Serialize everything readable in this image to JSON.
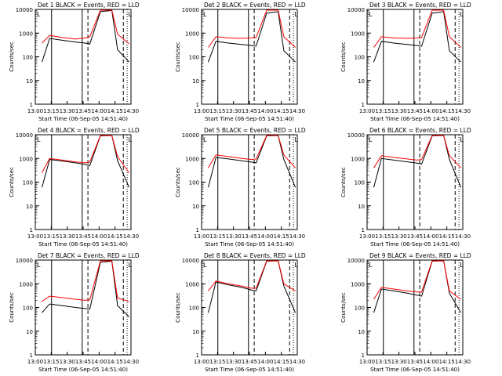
{
  "figure": {
    "ylabel": "Counts/sec",
    "xlabel": "Start Time (06-Sep-05 14:51:40)",
    "xticks": [
      "13:00",
      "13:15",
      "13:30",
      "13:45",
      "14:00",
      "14:15",
      "14:30"
    ],
    "yticks": [
      "1",
      "10",
      "100",
      "1000",
      "10000"
    ],
    "legend": "BLACK = Events, RED = LLD",
    "marker_labels": [
      "L",
      "L"
    ]
  },
  "chart_data": [
    {
      "type": "line",
      "title": "Det 1",
      "x_start": "13:00",
      "x_end": "14:30",
      "ylim": [
        1,
        10000
      ],
      "yscale": "log",
      "series": [
        {
          "name": "Events",
          "color": "#000000",
          "values_approx": [
            60,
            600,
            500,
            420,
            380,
            350,
            8000,
            9000,
            200,
            60
          ]
        },
        {
          "name": "LLD",
          "color": "#ff0000",
          "values_approx": [
            380,
            800,
            650,
            560,
            620,
            700,
            12000,
            12000,
            900,
            350
          ]
        }
      ]
    },
    {
      "type": "line",
      "title": "Det 2",
      "x_start": "13:00",
      "x_end": "14:30",
      "ylim": [
        1,
        10000
      ],
      "yscale": "log",
      "series": [
        {
          "name": "Events",
          "color": "#000000",
          "values_approx": [
            60,
            450,
            380,
            330,
            300,
            280,
            7000,
            8000,
            180,
            60
          ]
        },
        {
          "name": "LLD",
          "color": "#ff0000",
          "values_approx": [
            250,
            700,
            620,
            600,
            620,
            650,
            12000,
            12000,
            700,
            250
          ]
        }
      ]
    },
    {
      "type": "line",
      "title": "Det 3",
      "x_start": "13:00",
      "x_end": "14:30",
      "ylim": [
        1,
        10000
      ],
      "yscale": "log",
      "series": [
        {
          "name": "Events",
          "color": "#000000",
          "values_approx": [
            60,
            450,
            380,
            330,
            300,
            280,
            7000,
            8000,
            180,
            60
          ]
        },
        {
          "name": "LLD",
          "color": "#ff0000",
          "values_approx": [
            250,
            700,
            620,
            600,
            620,
            650,
            12000,
            12000,
            700,
            250
          ]
        }
      ]
    },
    {
      "type": "line",
      "title": "Det 4",
      "x_start": "13:00",
      "x_end": "14:30",
      "ylim": [
        1,
        10000
      ],
      "yscale": "log",
      "series": [
        {
          "name": "Events",
          "color": "#000000",
          "values_approx": [
            60,
            900,
            780,
            650,
            560,
            500,
            9000,
            10000,
            800,
            60
          ]
        },
        {
          "name": "LLD",
          "color": "#ff0000",
          "values_approx": [
            250,
            1000,
            850,
            720,
            650,
            700,
            12000,
            12000,
            1200,
            250
          ]
        }
      ]
    },
    {
      "type": "line",
      "title": "Det 5",
      "x_start": "13:00",
      "x_end": "14:30",
      "ylim": [
        1,
        10000
      ],
      "yscale": "log",
      "series": [
        {
          "name": "Events",
          "color": "#000000",
          "values_approx": [
            60,
            1100,
            950,
            800,
            700,
            650,
            9000,
            10000,
            900,
            60
          ]
        },
        {
          "name": "LLD",
          "color": "#ff0000",
          "values_approx": [
            400,
            1400,
            1200,
            1000,
            900,
            950,
            12000,
            12000,
            1400,
            400
          ]
        }
      ]
    },
    {
      "type": "line",
      "title": "Det 6",
      "x_start": "13:00",
      "x_end": "14:30",
      "ylim": [
        1,
        10000
      ],
      "yscale": "log",
      "series": [
        {
          "name": "Events",
          "color": "#000000",
          "values_approx": [
            60,
            1000,
            850,
            720,
            640,
            580,
            9000,
            10000,
            900,
            60
          ]
        },
        {
          "name": "LLD",
          "color": "#ff0000",
          "values_approx": [
            400,
            1300,
            1100,
            950,
            850,
            900,
            12000,
            12000,
            1300,
            400
          ]
        }
      ]
    },
    {
      "type": "line",
      "title": "Det 7",
      "x_start": "13:00",
      "x_end": "14:30",
      "ylim": [
        1,
        10000
      ],
      "yscale": "log",
      "series": [
        {
          "name": "Events",
          "color": "#000000",
          "values_approx": [
            60,
            140,
            120,
            100,
            90,
            85,
            8000,
            9000,
            120,
            40
          ]
        },
        {
          "name": "LLD",
          "color": "#ff0000",
          "values_approx": [
            180,
            300,
            260,
            220,
            200,
            210,
            12000,
            12000,
            250,
            180
          ]
        }
      ]
    },
    {
      "type": "line",
      "title": "Det 8",
      "x_start": "13:00",
      "x_end": "14:30",
      "ylim": [
        1,
        10000
      ],
      "yscale": "log",
      "series": [
        {
          "name": "Events",
          "color": "#000000",
          "values_approx": [
            60,
            1200,
            900,
            700,
            550,
            500,
            9000,
            10000,
            800,
            60
          ]
        },
        {
          "name": "LLD",
          "color": "#ff0000",
          "values_approx": [
            500,
            1300,
            1000,
            800,
            650,
            650,
            12000,
            12000,
            1000,
            500
          ]
        }
      ]
    },
    {
      "type": "line",
      "title": "Det 9",
      "x_start": "13:00",
      "x_end": "14:30",
      "ylim": [
        1,
        10000
      ],
      "yscale": "log",
      "series": [
        {
          "name": "Events",
          "color": "#000000",
          "values_approx": [
            60,
            600,
            500,
            400,
            330,
            300,
            9000,
            10000,
            400,
            60
          ]
        },
        {
          "name": "LLD",
          "color": "#ff0000",
          "values_approx": [
            220,
            700,
            600,
            500,
            450,
            450,
            12000,
            12000,
            500,
            220
          ]
        }
      ]
    }
  ]
}
